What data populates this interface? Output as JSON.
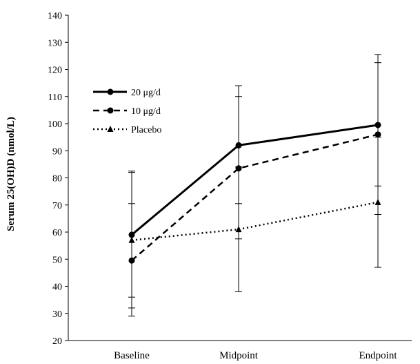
{
  "chart_data": {
    "type": "line",
    "title": "",
    "xlabel": "",
    "ylabel": "Serum 25(OH)D (nmol/L)",
    "categories": [
      "Baseline",
      "Midpoint",
      "Endpoint"
    ],
    "ylim": [
      20,
      140
    ],
    "yticks": [
      20,
      30,
      40,
      50,
      60,
      70,
      80,
      90,
      100,
      110,
      120,
      130,
      140
    ],
    "grid": false,
    "legend_position": "top-left",
    "series": [
      {
        "name": "20 μg/d",
        "values": [
          59,
          92,
          99.5
        ],
        "error_low": [
          36,
          70.5,
          77
        ],
        "error_high": [
          82,
          114,
          122.5
        ],
        "line_style": "solid",
        "marker": "circle",
        "color": "#000000"
      },
      {
        "name": "10 μg/d",
        "values": [
          49.5,
          83.5,
          96
        ],
        "error_low": [
          29,
          57.5,
          66.5
        ],
        "error_high": [
          70.5,
          110,
          125.5
        ],
        "line_style": "dashed",
        "marker": "circle",
        "color": "#000000"
      },
      {
        "name": "Placebo",
        "values": [
          57,
          61,
          71
        ],
        "error_low": [
          32,
          38,
          47
        ],
        "error_high": [
          82.5,
          84,
          95
        ],
        "line_style": "dotted",
        "marker": "triangle",
        "color": "#000000"
      }
    ]
  }
}
